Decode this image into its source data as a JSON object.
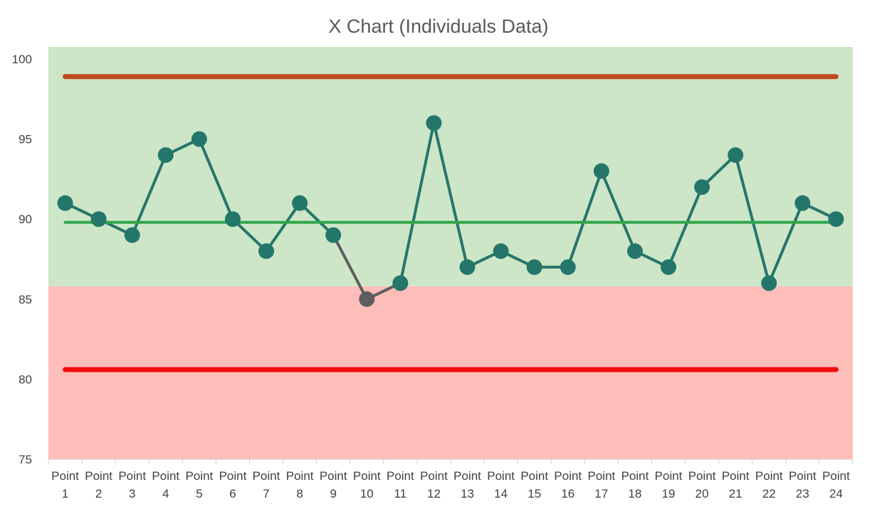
{
  "chart_data": {
    "type": "line",
    "title": "X Chart (Individuals Data)",
    "xlabel": "",
    "ylabel": "",
    "categories": [
      "Point 1",
      "Point 2",
      "Point 3",
      "Point 4",
      "Point 5",
      "Point 6",
      "Point 7",
      "Point 8",
      "Point 9",
      "Point 10",
      "Point 11",
      "Point 12",
      "Point 13",
      "Point 14",
      "Point 15",
      "Point 16",
      "Point 17",
      "Point 18",
      "Point 19",
      "Point 20",
      "Point 21",
      "Point 22",
      "Point 23",
      "Point 24"
    ],
    "series": [
      {
        "values": [
          91,
          90,
          89,
          94,
          95,
          90,
          88,
          91,
          89,
          85,
          86,
          96,
          87,
          88,
          87,
          87,
          93,
          88,
          87,
          92,
          94,
          86,
          91,
          90
        ],
        "color": "#25766A",
        "outlier_color": "#5E5E5E"
      }
    ],
    "ylim": [
      75,
      100
    ],
    "yticks": [
      75,
      80,
      85,
      90,
      95,
      100
    ],
    "lines": {
      "upper_control_limit": {
        "value": 98.9,
        "color": "#C24A1E"
      },
      "center_line": {
        "value": 89.8,
        "color": "#2FA64A"
      },
      "lower_control_limit": {
        "value": 80.6,
        "color": "#F20C0C"
      }
    },
    "bands": {
      "upper": {
        "from": 85.8,
        "to": 100,
        "color": "#CDE6C8"
      },
      "lower": {
        "from": 75,
        "to": 85.8,
        "color": "#FDBDB9"
      }
    },
    "grid": false,
    "legend": "none"
  }
}
